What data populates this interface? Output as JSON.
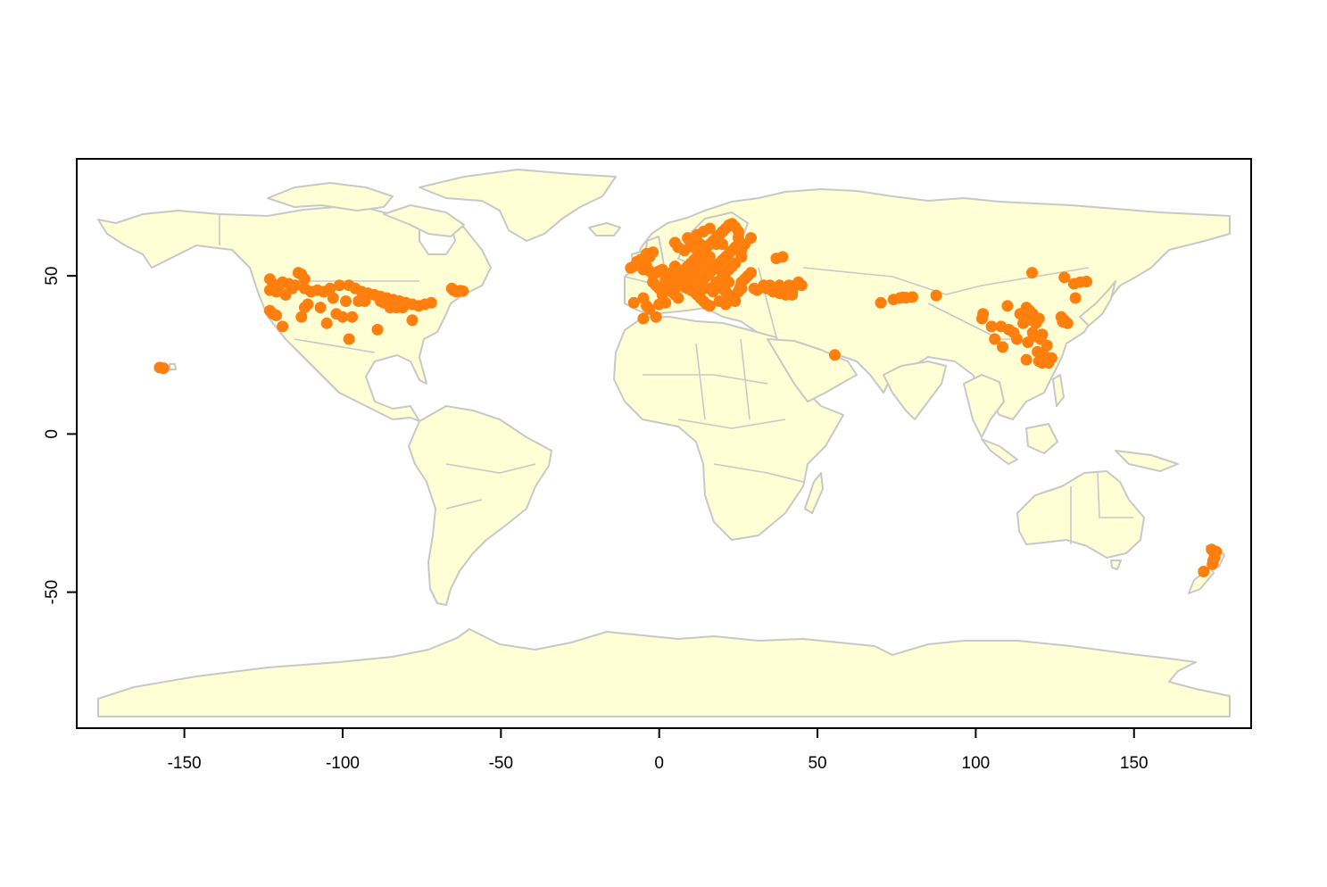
{
  "chart_data": {
    "type": "scatter",
    "title": "",
    "xlabel": "",
    "ylabel": "",
    "xlim": [
      -184,
      187
    ],
    "ylim": [
      -93,
      87
    ],
    "xticks": [
      -150,
      -100,
      -50,
      0,
      50,
      100,
      150
    ],
    "yticks": [
      -50,
      0,
      50
    ],
    "x_tick_labels": [
      "-150",
      "-100",
      "-50",
      "0",
      "50",
      "100",
      "150"
    ],
    "y_tick_labels": [
      "-50",
      "0",
      "50"
    ],
    "grid": false,
    "legend": "none",
    "basemap": "world country borders",
    "colors": {
      "points": "#FF7F0E",
      "land": "#FFFFD6",
      "coast": "#C8C8C8",
      "frame": "#000000"
    },
    "series": [
      {
        "points": [
          [
            -157.8,
            21.0
          ],
          [
            -156.6,
            20.8
          ],
          [
            -123,
            49
          ],
          [
            -122,
            47.5
          ],
          [
            -123,
            45.5
          ],
          [
            -120,
            47
          ],
          [
            -117,
            47.5
          ],
          [
            -114,
            51
          ],
          [
            -113,
            50.5
          ],
          [
            -112,
            49
          ],
          [
            -116,
            46
          ],
          [
            -118,
            44
          ],
          [
            -121,
            45
          ],
          [
            -119,
            48
          ],
          [
            -115,
            47
          ],
          [
            -112,
            46
          ],
          [
            -110,
            45
          ],
          [
            -108,
            45.5
          ],
          [
            -106,
            45
          ],
          [
            -104,
            46
          ],
          [
            -101,
            47
          ],
          [
            -98,
            47
          ],
          [
            -96,
            46
          ],
          [
            -94,
            45
          ],
          [
            -92,
            44.5
          ],
          [
            -90,
            44
          ],
          [
            -88,
            43.5
          ],
          [
            -86,
            43
          ],
          [
            -84,
            42.5
          ],
          [
            -82,
            42
          ],
          [
            -80,
            41.5
          ],
          [
            -78,
            41
          ],
          [
            -76,
            40.5
          ],
          [
            -74,
            41
          ],
          [
            -72,
            41.5
          ],
          [
            -123,
            39
          ],
          [
            -122,
            38
          ],
          [
            -121,
            37.5
          ],
          [
            -119,
            34
          ],
          [
            -113,
            37
          ],
          [
            -112,
            40
          ],
          [
            -111,
            41
          ],
          [
            -105,
            35
          ],
          [
            -102,
            38
          ],
          [
            -100,
            37
          ],
          [
            -98,
            30
          ],
          [
            -97,
            37
          ],
          [
            -99,
            42
          ],
          [
            -95,
            42
          ],
          [
            -93,
            42
          ],
          [
            -89,
            33
          ],
          [
            -88,
            42
          ],
          [
            -87,
            41.5
          ],
          [
            -85,
            40
          ],
          [
            -83,
            40
          ],
          [
            -81,
            40
          ],
          [
            -78,
            36
          ],
          [
            -103,
            43
          ],
          [
            -107,
            40
          ],
          [
            -65,
            45.5
          ],
          [
            -64,
            45
          ],
          [
            -63,
            45.3
          ],
          [
            -62,
            45.2
          ],
          [
            -65.5,
            46
          ],
          [
            -9,
            52.5
          ],
          [
            -8,
            53
          ],
          [
            -7,
            54.5
          ],
          [
            -6,
            55
          ],
          [
            -5,
            52
          ],
          [
            -4,
            53
          ],
          [
            -3,
            51.5
          ],
          [
            -2,
            50.5
          ],
          [
            -1,
            51
          ],
          [
            0,
            51.5
          ],
          [
            1,
            52
          ],
          [
            -3,
            56
          ],
          [
            -4,
            57
          ],
          [
            -2,
            57.5
          ],
          [
            -8,
            41.5
          ],
          [
            -5,
            43
          ],
          [
            -4,
            40.5
          ],
          [
            -3,
            39.5
          ],
          [
            -1,
            37
          ],
          [
            -5,
            36.5
          ],
          [
            0,
            41
          ],
          [
            2,
            41.5
          ],
          [
            1,
            44
          ],
          [
            2,
            46
          ],
          [
            3,
            47
          ],
          [
            4,
            48
          ],
          [
            5,
            49
          ],
          [
            6,
            50
          ],
          [
            7,
            51
          ],
          [
            8,
            52
          ],
          [
            9,
            53
          ],
          [
            10,
            54
          ],
          [
            11,
            55
          ],
          [
            12,
            56
          ],
          [
            13,
            57
          ],
          [
            14,
            58
          ],
          [
            15,
            59
          ],
          [
            16,
            60
          ],
          [
            17,
            61
          ],
          [
            18,
            62
          ],
          [
            19,
            63
          ],
          [
            20,
            64
          ],
          [
            21,
            65
          ],
          [
            22,
            66
          ],
          [
            23,
            66.5
          ],
          [
            24,
            65.5
          ],
          [
            25,
            64
          ],
          [
            10,
            60
          ],
          [
            11,
            61
          ],
          [
            8,
            58
          ],
          [
            6,
            59
          ],
          [
            5,
            60.5
          ],
          [
            9,
            62
          ],
          [
            12,
            63
          ],
          [
            14,
            64
          ],
          [
            16,
            65
          ],
          [
            7,
            47
          ],
          [
            8,
            46.5
          ],
          [
            9,
            46
          ],
          [
            10,
            45.5
          ],
          [
            11,
            45
          ],
          [
            12,
            44
          ],
          [
            13,
            43
          ],
          [
            14,
            42
          ],
          [
            15,
            41
          ],
          [
            16,
            40.5
          ],
          [
            12,
            47
          ],
          [
            13,
            48
          ],
          [
            14,
            49
          ],
          [
            15,
            50
          ],
          [
            16,
            51
          ],
          [
            17,
            52
          ],
          [
            18,
            53
          ],
          [
            19,
            54
          ],
          [
            20,
            55
          ],
          [
            21,
            56
          ],
          [
            22,
            57
          ],
          [
            23,
            58
          ],
          [
            24,
            59
          ],
          [
            25,
            60
          ],
          [
            18,
            48
          ],
          [
            19,
            47
          ],
          [
            20,
            46
          ],
          [
            21,
            45
          ],
          [
            22,
            44
          ],
          [
            23,
            43
          ],
          [
            24,
            42
          ],
          [
            25,
            45
          ],
          [
            26,
            46
          ],
          [
            20,
            50
          ],
          [
            21,
            51
          ],
          [
            22,
            52
          ],
          [
            23,
            53
          ],
          [
            24,
            54
          ],
          [
            26,
            48
          ],
          [
            27,
            49
          ],
          [
            28,
            50
          ],
          [
            29,
            51
          ],
          [
            26,
            58
          ],
          [
            26,
            56
          ],
          [
            22,
            48
          ],
          [
            16,
            46
          ],
          [
            17,
            45
          ],
          [
            10,
            50
          ],
          [
            11,
            51
          ],
          [
            12,
            52
          ],
          [
            13,
            53
          ],
          [
            14,
            54
          ],
          [
            8,
            49
          ],
          [
            9,
            48
          ],
          [
            6,
            52
          ],
          [
            5,
            53
          ],
          [
            4,
            51
          ],
          [
            3,
            50
          ],
          [
            2,
            49
          ],
          [
            -2,
            48
          ],
          [
            -1,
            47
          ],
          [
            0,
            46
          ],
          [
            4,
            45
          ],
          [
            5,
            44
          ],
          [
            6,
            43
          ],
          [
            14,
            46
          ],
          [
            13,
            45
          ],
          [
            19,
            42
          ],
          [
            21,
            41
          ],
          [
            25,
            62
          ],
          [
            27,
            60
          ],
          [
            29,
            62
          ],
          [
            20,
            60
          ],
          [
            18,
            60
          ],
          [
            16,
            56
          ],
          [
            15,
            55
          ],
          [
            13,
            60
          ],
          [
            11,
            59
          ],
          [
            25.5,
            46.2
          ],
          [
            33,
            47
          ],
          [
            34,
            46
          ],
          [
            35,
            47
          ],
          [
            36,
            46
          ],
          [
            37,
            45
          ],
          [
            38,
            47
          ],
          [
            39,
            45
          ],
          [
            40,
            46
          ],
          [
            41,
            47
          ],
          [
            42,
            45
          ],
          [
            43,
            47
          ],
          [
            44,
            48
          ],
          [
            45,
            47
          ],
          [
            37,
            55.5
          ],
          [
            39,
            56
          ],
          [
            36,
            45
          ],
          [
            38,
            44.5
          ],
          [
            40,
            44
          ],
          [
            42,
            44
          ],
          [
            30,
            46
          ],
          [
            31,
            45.5
          ],
          [
            55.5,
            25
          ],
          [
            70,
            41.5
          ],
          [
            74,
            42.5
          ],
          [
            76,
            43
          ],
          [
            77,
            43.2
          ],
          [
            78,
            43.1
          ],
          [
            80,
            43.3
          ],
          [
            87.5,
            43.8
          ],
          [
            102,
            36.5
          ],
          [
            102.3,
            38
          ],
          [
            105,
            34
          ],
          [
            106,
            30
          ],
          [
            108,
            34
          ],
          [
            108.5,
            27.5
          ],
          [
            110,
            40.5
          ],
          [
            110.5,
            33
          ],
          [
            112,
            32
          ],
          [
            113,
            30
          ],
          [
            114,
            38
          ],
          [
            115,
            35
          ],
          [
            116,
            40
          ],
          [
            116.5,
            29
          ],
          [
            117,
            39
          ],
          [
            117.5,
            36
          ],
          [
            118,
            32
          ],
          [
            118.5,
            31
          ],
          [
            119,
            35
          ],
          [
            119.5,
            26
          ],
          [
            120,
            36.5
          ],
          [
            120.5,
            30
          ],
          [
            121,
            31.5
          ],
          [
            121.5,
            25
          ],
          [
            122,
            23
          ],
          [
            122.5,
            28
          ],
          [
            123,
            22.5
          ],
          [
            124,
            24
          ],
          [
            127,
            37
          ],
          [
            127.5,
            35.5
          ],
          [
            128,
            36
          ],
          [
            129,
            35
          ],
          [
            128,
            49.5
          ],
          [
            131,
            47.5
          ],
          [
            131.5,
            43
          ],
          [
            133,
            48
          ],
          [
            135,
            48.2
          ],
          [
            117.8,
            51
          ],
          [
            116,
            23.5
          ],
          [
            120,
            23
          ],
          [
            121,
            22.5
          ],
          [
            117,
            37.5
          ],
          [
            118,
            38
          ],
          [
            174.5,
            -36.5
          ],
          [
            175,
            -37
          ],
          [
            175.5,
            -37.5
          ],
          [
            176,
            -37.2
          ],
          [
            175.5,
            -39
          ],
          [
            175,
            -40
          ],
          [
            174.8,
            -41.2
          ],
          [
            172,
            -43.5
          ]
        ]
      }
    ]
  }
}
